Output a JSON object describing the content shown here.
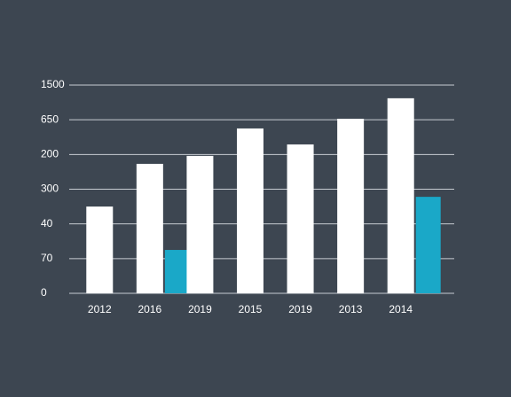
{
  "chart_data": {
    "type": "bar",
    "categories": [
      "2012",
      "2016",
      "2019",
      "2015",
      "2019",
      "2013",
      "2014"
    ],
    "series": [
      {
        "color": "#ffffff",
        "values": [
          2.5,
          3.73,
          3.96,
          4.75,
          4.29,
          5.03,
          5.62
        ]
      },
      {
        "color": "#1aa8c8",
        "values": [
          null,
          1.25,
          null,
          null,
          null,
          null,
          2.78
        ]
      }
    ],
    "ylim": [
      0,
      6
    ],
    "yticks": [
      {
        "value": 0,
        "label": "0"
      },
      {
        "value": 1,
        "label": "70"
      },
      {
        "value": 2,
        "label": "40"
      },
      {
        "value": 3,
        "label": "300"
      },
      {
        "value": 4,
        "label": "200"
      },
      {
        "value": 5,
        "label": "650"
      },
      {
        "value": 6,
        "label": "1500"
      }
    ],
    "grid": true
  }
}
